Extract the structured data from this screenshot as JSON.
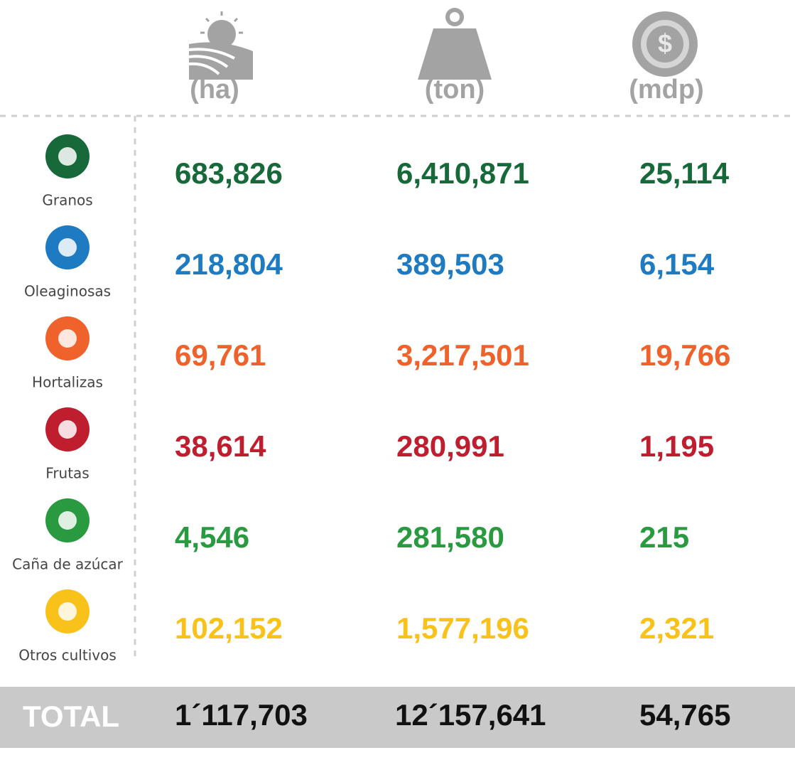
{
  "header": {
    "columns": [
      "(ha)",
      "(ton)",
      "(mdp)"
    ]
  },
  "table": {
    "rows": [
      {
        "label": "Granos",
        "color": "#17693a",
        "values": [
          "683,826",
          "6,410,871",
          "25,114"
        ]
      },
      {
        "label": "Oleaginosas",
        "color": "#1f7bc1",
        "values": [
          "218,804",
          "389,503",
          "6,154"
        ]
      },
      {
        "label": "Hortalizas",
        "color": "#f0622b",
        "values": [
          "69,761",
          "3,217,501",
          "19,766"
        ]
      },
      {
        "label": "Frutas",
        "color": "#bf1e2e",
        "values": [
          "38,614",
          "280,991",
          "1,195"
        ]
      },
      {
        "label": "Caña de azúcar",
        "color": "#2a9a40",
        "values": [
          "4,546",
          "281,580",
          "215"
        ]
      },
      {
        "label": "Otros cultivos",
        "color": "#f8c21a",
        "values": [
          "102,152",
          "1,577,196",
          "2,321"
        ]
      }
    ]
  },
  "total": {
    "label": "TOTAL",
    "values": [
      "1´117,703",
      "12´157,641",
      "54,765"
    ]
  }
}
